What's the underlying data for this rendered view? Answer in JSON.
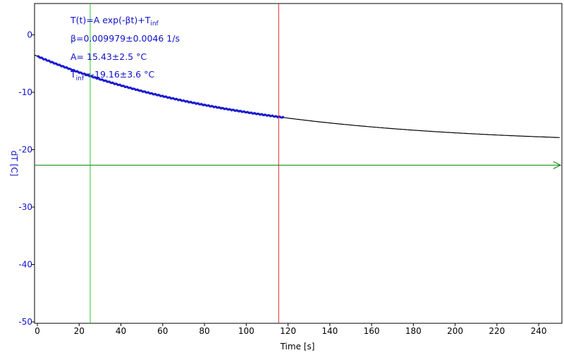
{
  "chart_data": {
    "type": "line",
    "title": "",
    "xlabel": "Time [s]",
    "ylabel": "dT [C]",
    "xlim": [
      0,
      250
    ],
    "ylim": [
      -50,
      5
    ],
    "xticks": [
      0,
      20,
      40,
      60,
      80,
      100,
      120,
      140,
      160,
      180,
      200,
      220,
      240
    ],
    "yticks": [
      0,
      -10,
      -20,
      -30,
      -40,
      -50
    ],
    "grid": false,
    "fit": {
      "formula_main": "T(t)=A exp(-βt)+T",
      "formula_sub": "inf",
      "beta": "β=0.009979±0.0046 1/s",
      "amplitude": "A= 15.43±2.5 °C",
      "tinf_main": "T",
      "tinf_sub": "inf",
      "tinf_rest": "=-19.16±3.6 °C",
      "params": {
        "A": 15.43,
        "beta": 0.009979,
        "T_inf": -19.16
      }
    },
    "series": [
      {
        "color": "#1a1ad0",
        "x_range": [
          0,
          118
        ],
        "role": "measured data"
      },
      {
        "color": "#000000",
        "x_range": [
          0,
          250
        ],
        "role": "fit curve"
      }
    ],
    "cursors": [
      {
        "orientation": "vertical",
        "x": 25.3,
        "color": "#22cc22"
      },
      {
        "orientation": "vertical",
        "x": 115.5,
        "color": "#dd2222"
      },
      {
        "orientation": "horizontal",
        "y": -22.7,
        "color": "#118811",
        "arrow": true
      }
    ]
  }
}
